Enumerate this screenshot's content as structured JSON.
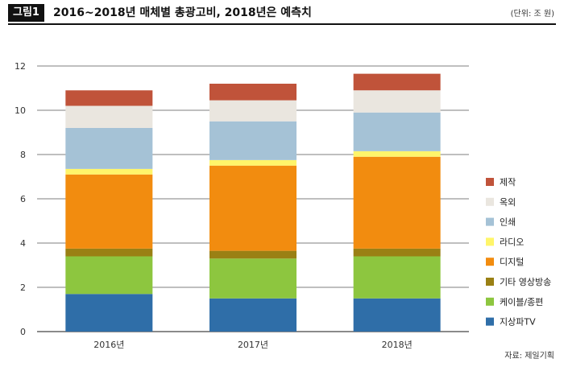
{
  "header": {
    "badge": "그림1",
    "title": "2016~2018년 매체별 총광고비, 2018년은 예측치",
    "unit": "(단위: 조 원)"
  },
  "source": "자료: 제일기획",
  "chart_data": {
    "type": "bar",
    "stacked": true,
    "categories": [
      "2016년",
      "2017년",
      "2018년"
    ],
    "ylim": [
      0,
      12
    ],
    "yticks": [
      0,
      2,
      4,
      6,
      8,
      10,
      12
    ],
    "grid": true,
    "legend_position": "right",
    "series": [
      {
        "name": "지상파TV",
        "color": "#2f6ea8",
        "values": [
          1.7,
          1.5,
          1.5
        ]
      },
      {
        "name": "케이블/종편",
        "color": "#8dc63f",
        "values": [
          1.7,
          1.8,
          1.9
        ]
      },
      {
        "name": "기타 영상방송",
        "color": "#9a8014",
        "values": [
          0.35,
          0.35,
          0.35
        ]
      },
      {
        "name": "디지털",
        "color": "#f28c0f",
        "values": [
          3.35,
          3.85,
          4.15
        ]
      },
      {
        "name": "라디오",
        "color": "#fff56a",
        "values": [
          0.25,
          0.25,
          0.25
        ]
      },
      {
        "name": "인쇄",
        "color": "#a5c2d6",
        "values": [
          1.85,
          1.75,
          1.75
        ]
      },
      {
        "name": "옥외",
        "color": "#eae6df",
        "values": [
          1.0,
          0.95,
          1.0
        ]
      },
      {
        "name": "제작",
        "color": "#c0533a",
        "values": [
          0.7,
          0.75,
          0.75
        ]
      }
    ]
  }
}
